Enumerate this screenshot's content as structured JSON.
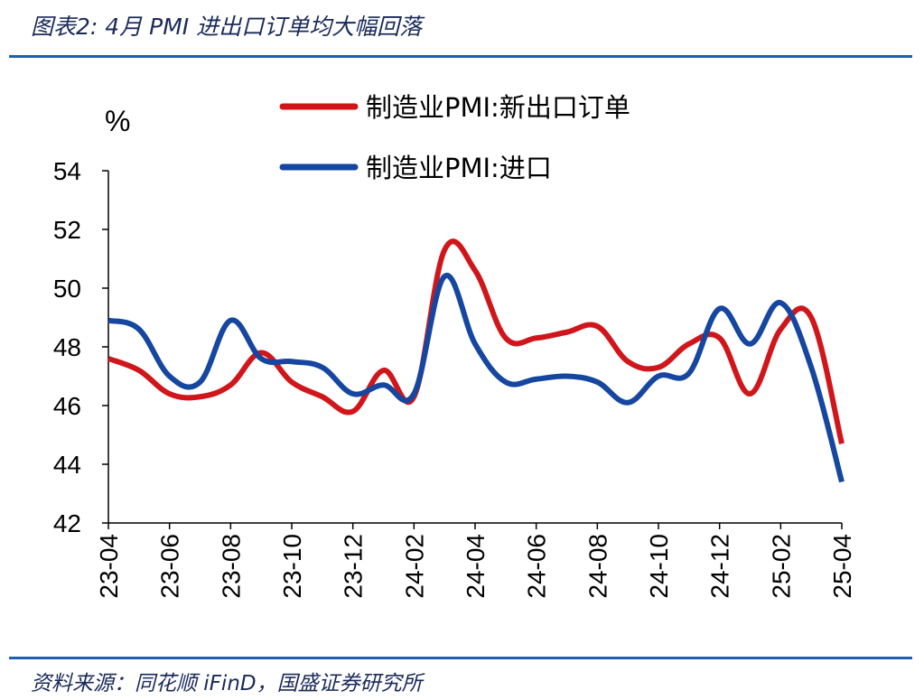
{
  "title": "图表2: 4月 PMI 进出口订单均大幅回落",
  "source": "资料来源：同花顺 iFinD，国盛证券研究所",
  "chart_data": {
    "type": "line",
    "ylabel": "%",
    "ylim": [
      42,
      54
    ],
    "yticks": [
      "42",
      "44",
      "46",
      "48",
      "50",
      "52",
      "54"
    ],
    "x": [
      "23-04",
      "23-05",
      "23-06",
      "23-07",
      "23-08",
      "23-09",
      "23-10",
      "23-11",
      "23-12",
      "24-01",
      "24-02",
      "24-03",
      "24-04",
      "24-05",
      "24-06",
      "24-07",
      "24-08",
      "24-09",
      "24-10",
      "24-11",
      "24-12",
      "25-01",
      "25-02",
      "25-03",
      "25-04"
    ],
    "xticks": [
      "23-04",
      "23-06",
      "23-08",
      "23-10",
      "23-12",
      "24-02",
      "24-04",
      "24-06",
      "24-08",
      "24-10",
      "24-12",
      "25-02",
      "25-04"
    ],
    "legend_position": "top-center",
    "grid": false,
    "series": [
      {
        "name": "制造业PMI:新出口订单",
        "color": "#d0161b",
        "values": [
          47.6,
          47.2,
          46.4,
          46.3,
          46.7,
          47.8,
          46.8,
          46.3,
          45.8,
          47.2,
          46.3,
          51.3,
          50.6,
          48.3,
          48.3,
          48.5,
          48.7,
          47.5,
          47.3,
          48.1,
          48.3,
          46.4,
          48.6,
          49.0,
          44.7
        ]
      },
      {
        "name": "制造业PMI:进口",
        "color": "#1546a0",
        "values": [
          48.9,
          48.6,
          47.0,
          46.8,
          48.9,
          47.6,
          47.5,
          47.3,
          46.4,
          46.7,
          46.4,
          50.4,
          48.1,
          46.8,
          46.9,
          47.0,
          46.8,
          46.1,
          47.0,
          47.1,
          49.3,
          48.1,
          49.5,
          47.3,
          43.4
        ]
      }
    ]
  }
}
